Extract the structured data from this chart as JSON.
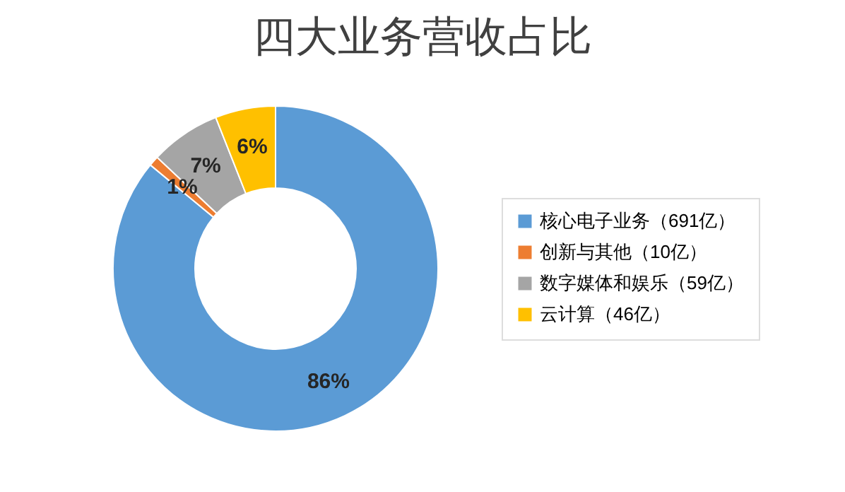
{
  "chart_data": {
    "type": "donut",
    "title": "四大业务营收占比",
    "categories": [
      "核心电子业务（691亿）",
      "创新与其他（10亿）",
      "数字媒体和娱乐（59亿）",
      "云计算（46亿）"
    ],
    "values": [
      86,
      1,
      7,
      6
    ],
    "colors": [
      "#5b9bd5",
      "#ed7d31",
      "#a5a5a5",
      "#ffc000"
    ],
    "value_labels": [
      "86%",
      "1%",
      "7%",
      "6%"
    ],
    "legend": "right"
  }
}
